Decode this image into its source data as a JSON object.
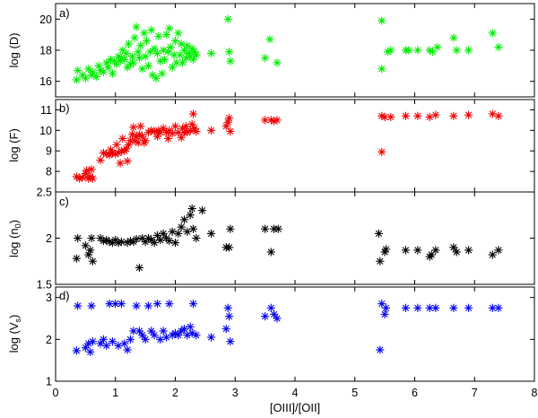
{
  "chart_data": {
    "type": "scatter",
    "xlabel": "[OIII]/[OII]",
    "xlim": [
      0,
      8
    ],
    "xticks": [
      0,
      1,
      2,
      3,
      4,
      5,
      6,
      7,
      8
    ],
    "marker": "asterisk",
    "panels": [
      {
        "tag": "a)",
        "ylabel": "log (D)",
        "color": "#00ee00",
        "ylim": [
          15,
          21
        ],
        "yticks": [
          16,
          18,
          20
        ],
        "points": [
          [
            0.35,
            16.1
          ],
          [
            0.37,
            16.7
          ],
          [
            0.45,
            16.4
          ],
          [
            0.5,
            16.2
          ],
          [
            0.55,
            16.8
          ],
          [
            0.6,
            16.4
          ],
          [
            0.62,
            16.6
          ],
          [
            0.68,
            16.3
          ],
          [
            0.72,
            17.0
          ],
          [
            0.75,
            16.7
          ],
          [
            0.8,
            16.6
          ],
          [
            0.85,
            17.2
          ],
          [
            0.88,
            16.9
          ],
          [
            0.92,
            17.4
          ],
          [
            0.95,
            16.5
          ],
          [
            0.98,
            17.3
          ],
          [
            1.02,
            17.1
          ],
          [
            1.05,
            17.6
          ],
          [
            1.08,
            17.3
          ],
          [
            1.1,
            17.5
          ],
          [
            1.12,
            18.0
          ],
          [
            1.15,
            17.4
          ],
          [
            1.18,
            17.8
          ],
          [
            1.2,
            16.9
          ],
          [
            1.22,
            18.4
          ],
          [
            1.25,
            17.1
          ],
          [
            1.28,
            17.6
          ],
          [
            1.3,
            17.2
          ],
          [
            1.32,
            18.8
          ],
          [
            1.35,
            19.5
          ],
          [
            1.38,
            17.9
          ],
          [
            1.4,
            17.5
          ],
          [
            1.42,
            18.3
          ],
          [
            1.45,
            16.8
          ],
          [
            1.48,
            19.1
          ],
          [
            1.5,
            17.6
          ],
          [
            1.52,
            18.6
          ],
          [
            1.55,
            17.0
          ],
          [
            1.58,
            17.9
          ],
          [
            1.6,
            19.3
          ],
          [
            1.62,
            16.4
          ],
          [
            1.65,
            18.1
          ],
          [
            1.68,
            16.2
          ],
          [
            1.7,
            17.8
          ],
          [
            1.72,
            18.9
          ],
          [
            1.75,
            17.3
          ],
          [
            1.78,
            16.5
          ],
          [
            1.8,
            18.0
          ],
          [
            1.82,
            17.4
          ],
          [
            1.85,
            19.0
          ],
          [
            1.88,
            17.9
          ],
          [
            1.9,
            19.4
          ],
          [
            1.92,
            18.2
          ],
          [
            1.95,
            16.9
          ],
          [
            1.98,
            17.7
          ],
          [
            2.0,
            18.6
          ],
          [
            2.02,
            17.2
          ],
          [
            2.05,
            19.1
          ],
          [
            2.08,
            17.7
          ],
          [
            2.1,
            18.4
          ],
          [
            2.12,
            17.2
          ],
          [
            2.15,
            18.0
          ],
          [
            2.18,
            17.5
          ],
          [
            2.2,
            18.3
          ],
          [
            2.22,
            17.8
          ],
          [
            2.25,
            17.6
          ],
          [
            2.28,
            18.1
          ],
          [
            2.3,
            17.4
          ],
          [
            2.32,
            17.9
          ],
          [
            2.35,
            17.7
          ],
          [
            2.6,
            17.8
          ],
          [
            2.88,
            20.0
          ],
          [
            2.9,
            17.9
          ],
          [
            2.92,
            17.3
          ],
          [
            3.5,
            17.5
          ],
          [
            3.58,
            18.7
          ],
          [
            3.7,
            17.2
          ],
          [
            5.45,
            19.9
          ],
          [
            5.45,
            16.8
          ],
          [
            5.55,
            17.9
          ],
          [
            5.6,
            18.0
          ],
          [
            5.85,
            18.0
          ],
          [
            5.9,
            18.0
          ],
          [
            6.05,
            18.0
          ],
          [
            6.25,
            18.0
          ],
          [
            6.3,
            17.9
          ],
          [
            6.38,
            18.2
          ],
          [
            6.65,
            18.8
          ],
          [
            6.7,
            18.0
          ],
          [
            6.9,
            18.0
          ],
          [
            7.3,
            19.1
          ],
          [
            7.4,
            18.2
          ]
        ]
      },
      {
        "tag": "b)",
        "ylabel": "log (F)",
        "color": "#ee0000",
        "ylim": [
          7,
          11.5
        ],
        "yticks": [
          8,
          9,
          10,
          11
        ],
        "points": [
          [
            0.35,
            7.75
          ],
          [
            0.4,
            7.65
          ],
          [
            0.45,
            7.7
          ],
          [
            0.5,
            7.9
          ],
          [
            0.52,
            8.05
          ],
          [
            0.55,
            7.65
          ],
          [
            0.58,
            7.75
          ],
          [
            0.6,
            8.1
          ],
          [
            0.62,
            7.65
          ],
          [
            0.75,
            8.55
          ],
          [
            0.8,
            8.9
          ],
          [
            0.85,
            8.85
          ],
          [
            0.9,
            8.8
          ],
          [
            0.92,
            9.05
          ],
          [
            0.95,
            8.9
          ],
          [
            1.0,
            8.85
          ],
          [
            1.02,
            9.3
          ],
          [
            1.05,
            8.9
          ],
          [
            1.08,
            8.4
          ],
          [
            1.1,
            9.0
          ],
          [
            1.12,
            9.6
          ],
          [
            1.15,
            9.0
          ],
          [
            1.18,
            9.1
          ],
          [
            1.2,
            8.5
          ],
          [
            1.22,
            9.3
          ],
          [
            1.25,
            9.5
          ],
          [
            1.28,
            9.8
          ],
          [
            1.3,
            10.15
          ],
          [
            1.32,
            9.5
          ],
          [
            1.35,
            9.7
          ],
          [
            1.38,
            9.4
          ],
          [
            1.4,
            9.8
          ],
          [
            1.42,
            10.2
          ],
          [
            1.45,
            9.7
          ],
          [
            1.48,
            9.4
          ],
          [
            1.5,
            9.5
          ],
          [
            1.55,
            9.9
          ],
          [
            1.6,
            10.0
          ],
          [
            1.65,
            9.95
          ],
          [
            1.7,
            9.7
          ],
          [
            1.72,
            10.0
          ],
          [
            1.75,
            9.9
          ],
          [
            1.8,
            10.1
          ],
          [
            1.85,
            9.9
          ],
          [
            1.88,
            9.6
          ],
          [
            1.9,
            10.0
          ],
          [
            1.95,
            9.85
          ],
          [
            2.0,
            10.2
          ],
          [
            2.05,
            9.9
          ],
          [
            2.1,
            9.65
          ],
          [
            2.12,
            10.1
          ],
          [
            2.15,
            9.9
          ],
          [
            2.18,
            10.2
          ],
          [
            2.2,
            9.9
          ],
          [
            2.25,
            10.0
          ],
          [
            2.28,
            10.3
          ],
          [
            2.3,
            10.8
          ],
          [
            2.32,
            10.1
          ],
          [
            2.35,
            9.95
          ],
          [
            2.6,
            10.0
          ],
          [
            2.85,
            10.2
          ],
          [
            2.88,
            10.4
          ],
          [
            2.9,
            10.6
          ],
          [
            2.92,
            9.95
          ],
          [
            3.5,
            10.5
          ],
          [
            3.6,
            10.5
          ],
          [
            3.65,
            10.45
          ],
          [
            3.7,
            10.5
          ],
          [
            5.45,
            8.95
          ],
          [
            5.45,
            10.7
          ],
          [
            5.5,
            10.65
          ],
          [
            5.6,
            10.65
          ],
          [
            5.85,
            10.7
          ],
          [
            6.05,
            10.7
          ],
          [
            6.25,
            10.65
          ],
          [
            6.35,
            10.75
          ],
          [
            6.65,
            10.7
          ],
          [
            6.9,
            10.75
          ],
          [
            7.3,
            10.8
          ],
          [
            7.4,
            10.7
          ]
        ]
      },
      {
        "tag": "c)",
        "ylabel": "log (n",
        "ylabel_sub": "0",
        "ylabel_end": ")",
        "color": "#000000",
        "ylim": [
          1.5,
          2.5
        ],
        "yticks": [
          1.5,
          2,
          2.5
        ],
        "ytick_labels": [
          "1.5",
          "2",
          "2.5"
        ],
        "points": [
          [
            0.35,
            1.78
          ],
          [
            0.37,
            2.0
          ],
          [
            0.5,
            1.92
          ],
          [
            0.55,
            1.82
          ],
          [
            0.58,
            1.87
          ],
          [
            0.6,
            2.0
          ],
          [
            0.62,
            1.75
          ],
          [
            0.75,
            2.0
          ],
          [
            0.8,
            1.97
          ],
          [
            0.85,
            1.98
          ],
          [
            0.9,
            1.96
          ],
          [
            0.95,
            1.95
          ],
          [
            1.0,
            1.98
          ],
          [
            1.05,
            1.95
          ],
          [
            1.1,
            1.96
          ],
          [
            1.2,
            1.95
          ],
          [
            1.25,
            1.97
          ],
          [
            1.3,
            1.96
          ],
          [
            1.35,
            1.99
          ],
          [
            1.4,
            1.68
          ],
          [
            1.45,
            2.0
          ],
          [
            1.5,
            1.96
          ],
          [
            1.55,
            2.0
          ],
          [
            1.6,
            1.98
          ],
          [
            1.65,
            1.95
          ],
          [
            1.7,
            2.03
          ],
          [
            1.75,
            1.98
          ],
          [
            1.8,
            2.05
          ],
          [
            1.85,
            2.0
          ],
          [
            1.9,
            1.97
          ],
          [
            1.95,
            2.07
          ],
          [
            2.0,
            1.95
          ],
          [
            2.05,
            2.05
          ],
          [
            2.1,
            2.12
          ],
          [
            2.15,
            2.2
          ],
          [
            2.2,
            2.07
          ],
          [
            2.25,
            2.25
          ],
          [
            2.28,
            2.32
          ],
          [
            2.3,
            2.1
          ],
          [
            2.35,
            2.0
          ],
          [
            2.45,
            2.3
          ],
          [
            2.6,
            2.05
          ],
          [
            2.85,
            1.9
          ],
          [
            2.9,
            1.9
          ],
          [
            2.92,
            2.1
          ],
          [
            3.5,
            2.1
          ],
          [
            3.6,
            1.85
          ],
          [
            3.65,
            2.1
          ],
          [
            3.72,
            2.1
          ],
          [
            5.4,
            2.05
          ],
          [
            5.42,
            1.75
          ],
          [
            5.5,
            1.85
          ],
          [
            5.52,
            1.88
          ],
          [
            5.85,
            1.87
          ],
          [
            6.05,
            1.87
          ],
          [
            6.25,
            1.8
          ],
          [
            6.28,
            1.82
          ],
          [
            6.35,
            1.87
          ],
          [
            6.65,
            1.9
          ],
          [
            6.7,
            1.85
          ],
          [
            6.9,
            1.87
          ],
          [
            7.3,
            1.82
          ],
          [
            7.4,
            1.87
          ]
        ]
      },
      {
        "tag": "d)",
        "ylabel": "log (V",
        "ylabel_sub": "s",
        "ylabel_end": ")",
        "color": "#0000ee",
        "ylim": [
          1,
          3.25
        ],
        "yticks": [
          1,
          2,
          3
        ],
        "points": [
          [
            0.35,
            1.73
          ],
          [
            0.37,
            2.8
          ],
          [
            0.5,
            1.8
          ],
          [
            0.55,
            1.9
          ],
          [
            0.58,
            1.7
          ],
          [
            0.6,
            2.8
          ],
          [
            0.62,
            1.95
          ],
          [
            0.75,
            1.9
          ],
          [
            0.8,
            2.0
          ],
          [
            0.85,
            1.85
          ],
          [
            0.9,
            2.85
          ],
          [
            0.95,
            1.95
          ],
          [
            1.0,
            2.85
          ],
          [
            1.05,
            1.85
          ],
          [
            1.1,
            2.85
          ],
          [
            1.15,
            1.9
          ],
          [
            1.2,
            1.75
          ],
          [
            1.25,
            2.0
          ],
          [
            1.3,
            2.2
          ],
          [
            1.35,
            2.8
          ],
          [
            1.4,
            2.2
          ],
          [
            1.45,
            2.1
          ],
          [
            1.5,
            2.0
          ],
          [
            1.55,
            2.8
          ],
          [
            1.6,
            2.2
          ],
          [
            1.65,
            2.1
          ],
          [
            1.7,
            2.85
          ],
          [
            1.75,
            2.0
          ],
          [
            1.8,
            2.2
          ],
          [
            1.85,
            2.05
          ],
          [
            1.9,
            2.85
          ],
          [
            1.95,
            2.1
          ],
          [
            2.0,
            2.15
          ],
          [
            2.05,
            2.1
          ],
          [
            2.1,
            2.2
          ],
          [
            2.15,
            2.25
          ],
          [
            2.2,
            2.1
          ],
          [
            2.25,
            2.3
          ],
          [
            2.28,
            2.15
          ],
          [
            2.3,
            2.85
          ],
          [
            2.35,
            2.1
          ],
          [
            2.6,
            2.05
          ],
          [
            2.85,
            2.25
          ],
          [
            2.88,
            2.75
          ],
          [
            2.9,
            2.55
          ],
          [
            2.92,
            1.95
          ],
          [
            3.5,
            2.55
          ],
          [
            3.6,
            2.75
          ],
          [
            3.65,
            2.6
          ],
          [
            3.7,
            2.5
          ],
          [
            5.42,
            1.75
          ],
          [
            5.45,
            2.85
          ],
          [
            5.5,
            2.6
          ],
          [
            5.52,
            2.75
          ],
          [
            5.85,
            2.75
          ],
          [
            6.05,
            2.75
          ],
          [
            6.25,
            2.75
          ],
          [
            6.35,
            2.75
          ],
          [
            6.65,
            2.75
          ],
          [
            6.9,
            2.75
          ],
          [
            7.3,
            2.75
          ],
          [
            7.4,
            2.75
          ]
        ]
      }
    ]
  }
}
